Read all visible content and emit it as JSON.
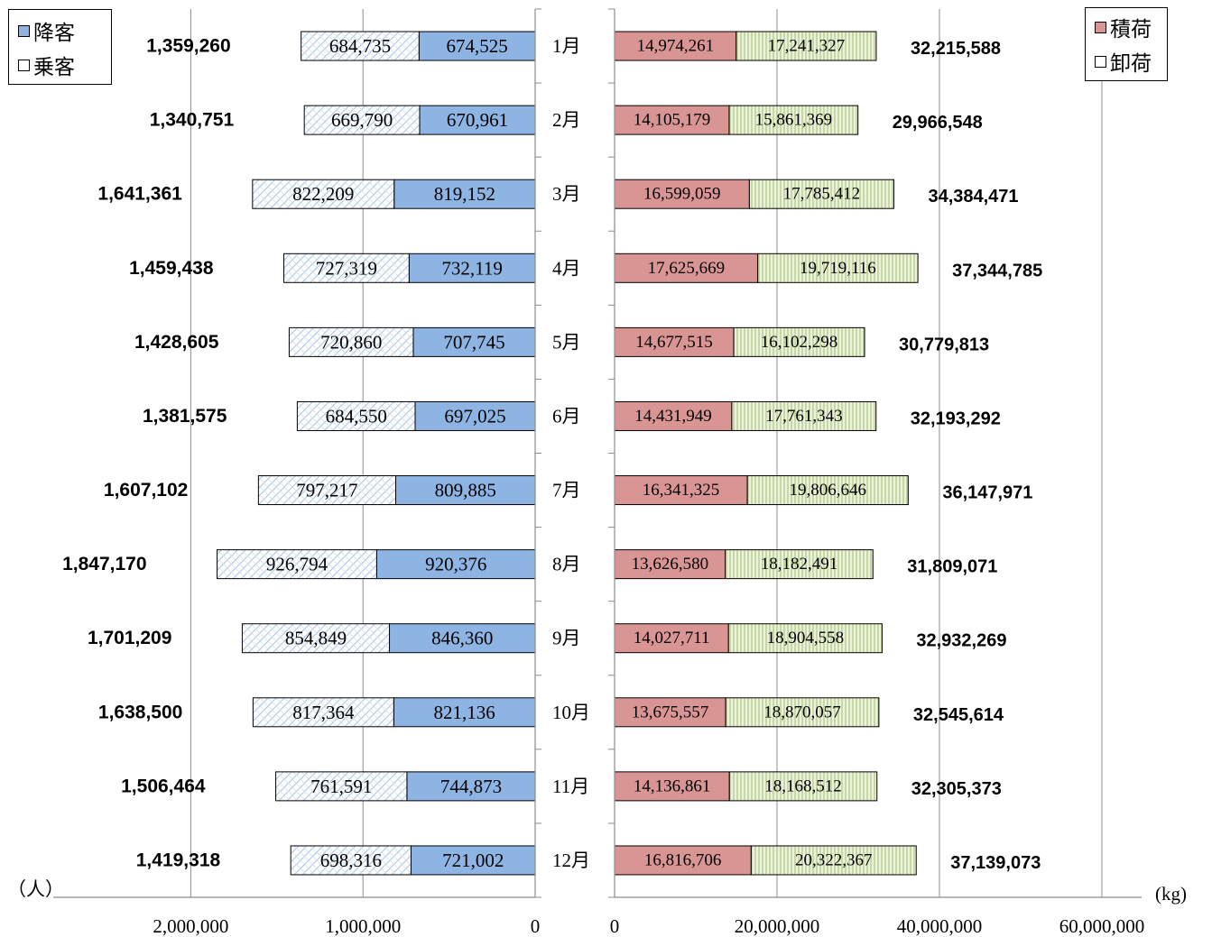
{
  "chart_data": {
    "type": "bar",
    "categories": [
      "1月",
      "2月",
      "3月",
      "4月",
      "5月",
      "6月",
      "7月",
      "8月",
      "9月",
      "10月",
      "11月",
      "12月"
    ],
    "passengers": {
      "unit": "（人）",
      "axis_ticks": [
        "2,000,000",
        "1,000,000",
        "0"
      ],
      "xlim": [
        0,
        2800000
      ],
      "series": [
        {
          "name": "降客",
          "color": "#8eb4e3",
          "values": [
            674525,
            670961,
            819152,
            732119,
            707745,
            697025,
            809885,
            920376,
            846360,
            821136,
            744873,
            721002
          ]
        },
        {
          "name": "乗客",
          "color": "#ffffff",
          "values": [
            684735,
            669790,
            822209,
            727319,
            720860,
            684550,
            797217,
            926794,
            854849,
            817364,
            761591,
            698316
          ]
        }
      ],
      "totals": [
        1359260,
        1340751,
        1641361,
        1459438,
        1428605,
        1381575,
        1607102,
        1847170,
        1701209,
        1638500,
        1506464,
        1419318
      ]
    },
    "cargo": {
      "unit": "(kg)",
      "axis_ticks": [
        "0",
        "20,000,000",
        "40,000,000",
        "60,000,000"
      ],
      "xlim": [
        0,
        65000000
      ],
      "series": [
        {
          "name": "積荷",
          "color": "#d99594",
          "values": [
            14974261,
            14105179,
            16599059,
            17625669,
            14677515,
            14431949,
            16341325,
            13626580,
            14027711,
            13675557,
            14136861,
            16816706
          ]
        },
        {
          "name": "卸荷",
          "color": "#ebf1de",
          "values": [
            17241327,
            15861369,
            17785412,
            19719116,
            16102298,
            17761343,
            19806646,
            18182491,
            18904558,
            18870057,
            18168512,
            20322367
          ]
        }
      ],
      "totals": [
        32215588,
        29966548,
        34384471,
        37344785,
        30779813,
        32193292,
        36147971,
        31809071,
        32932269,
        32545614,
        32305373,
        37139073
      ]
    }
  },
  "legend_left": {
    "items": [
      {
        "label": "降客",
        "color": "#8eb4e3"
      },
      {
        "label": "乗客",
        "color": "#ffffff"
      }
    ]
  },
  "legend_right": {
    "items": [
      {
        "label": "積荷",
        "color": "#d99594"
      },
      {
        "label": "卸荷",
        "color": "#ebf1de"
      }
    ]
  }
}
